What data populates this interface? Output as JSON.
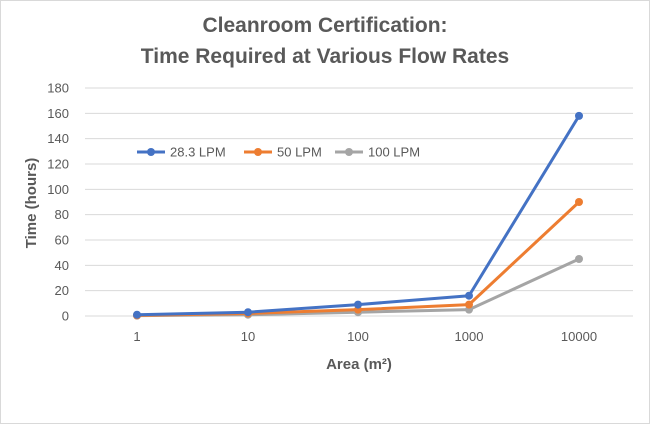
{
  "chart_data": {
    "type": "line",
    "title_lines": [
      "Cleanroom Certification:",
      "Time Required at Various Flow Rates"
    ],
    "xlabel": "Area (m²)",
    "ylabel": "Time (hours)",
    "categories": [
      "1",
      "10",
      "100",
      "1000",
      "10000"
    ],
    "ylim": [
      0,
      180
    ],
    "yticks": [
      0,
      20,
      40,
      60,
      80,
      100,
      120,
      140,
      160,
      180
    ],
    "grid": true,
    "legend_position": "top-left",
    "series": [
      {
        "name": "28.3 LPM",
        "color": "#4472c4",
        "values": [
          1,
          3,
          9,
          16,
          158
        ]
      },
      {
        "name": "50 LPM",
        "color": "#ed7d31",
        "values": [
          0.5,
          2,
          5,
          9,
          90
        ]
      },
      {
        "name": "100 LPM",
        "color": "#a5a5a5",
        "values": [
          0.3,
          1,
          3,
          5,
          45
        ]
      }
    ]
  }
}
